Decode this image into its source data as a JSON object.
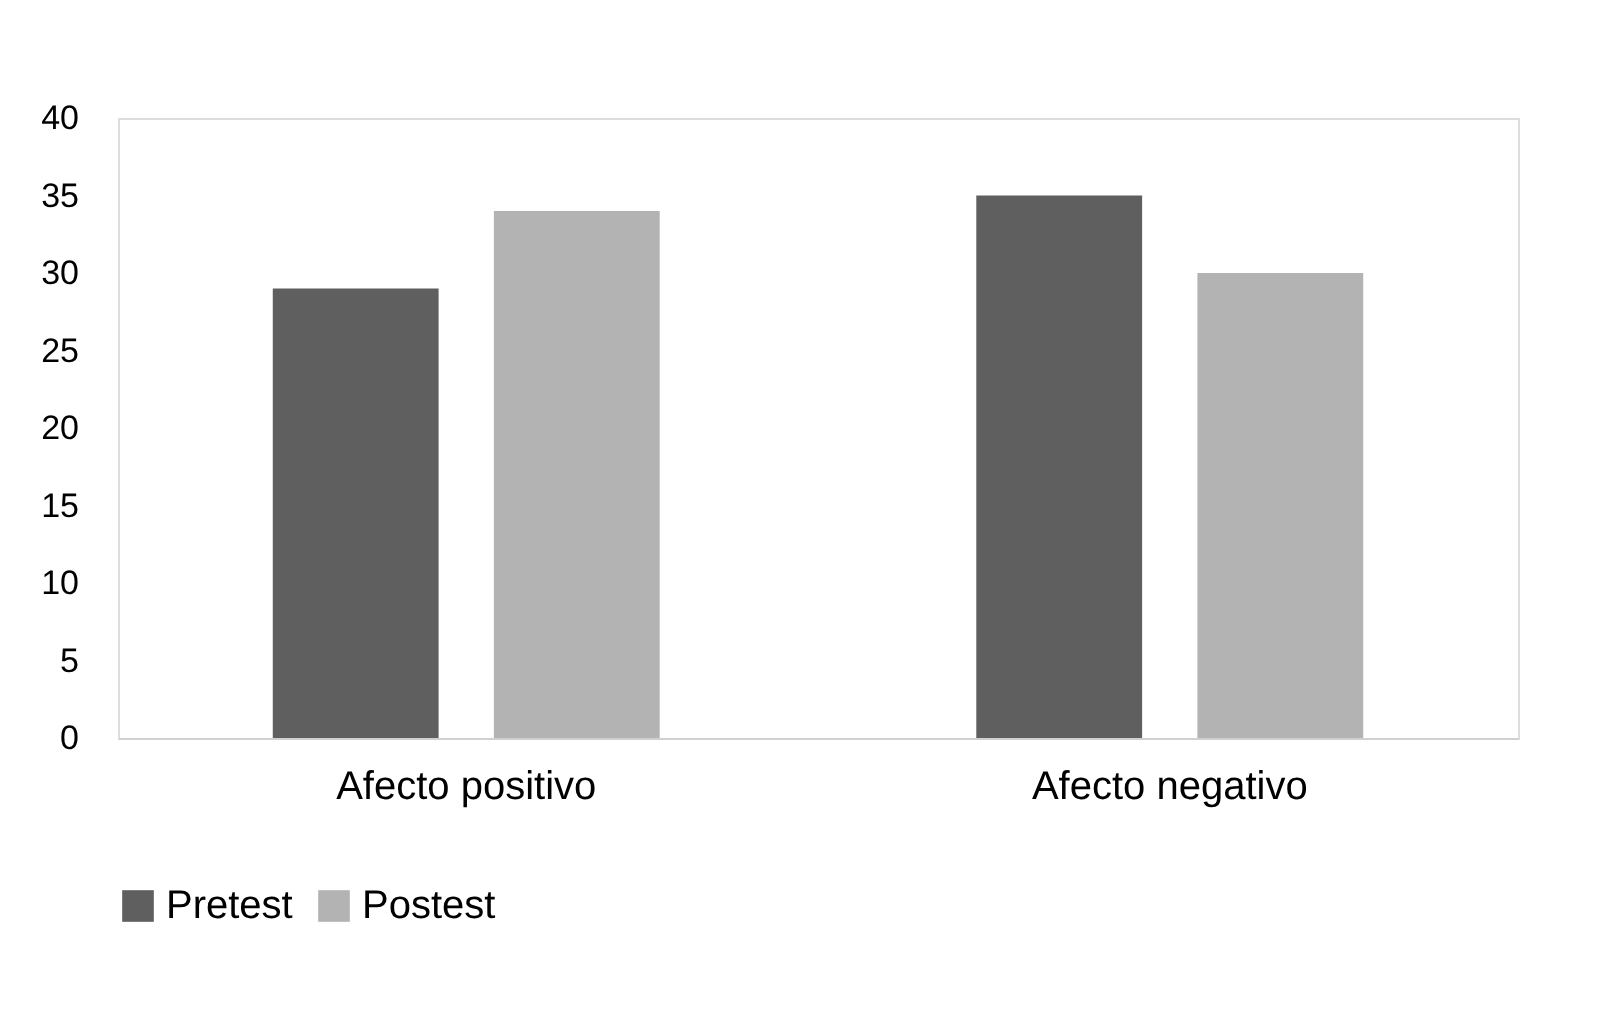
{
  "chart_data": {
    "type": "bar",
    "categories": [
      "Afecto positivo",
      "Afecto negativo"
    ],
    "series": [
      {
        "name": "Pretest",
        "color": "#5f5f5f",
        "values": [
          29,
          35
        ]
      },
      {
        "name": "Postest",
        "color": "#b3b3b3",
        "values": [
          34,
          30
        ]
      }
    ],
    "ylim": [
      0,
      40
    ],
    "yticks": [
      0,
      5,
      10,
      15,
      20,
      25,
      30,
      35,
      40
    ],
    "grid": false,
    "legend": "bottom"
  }
}
